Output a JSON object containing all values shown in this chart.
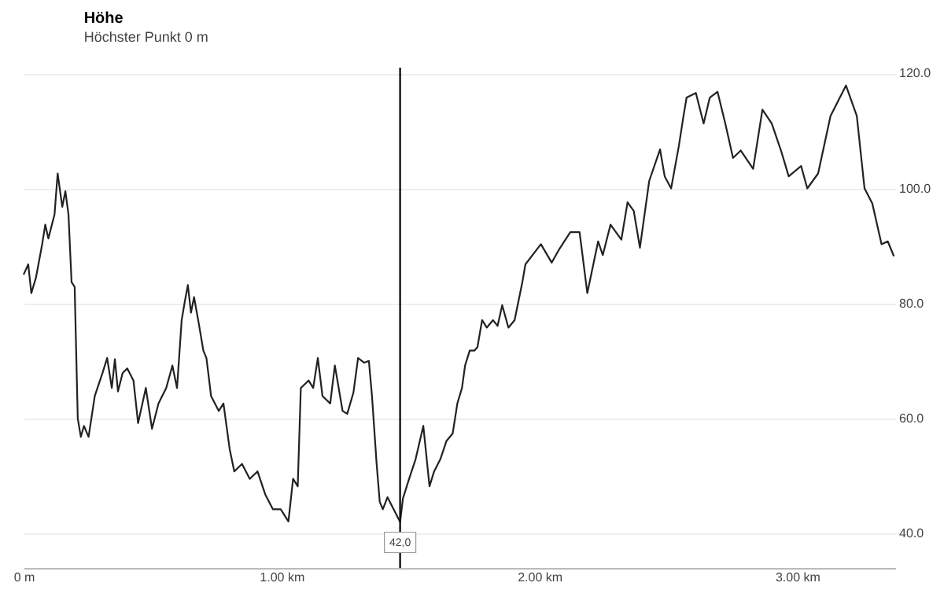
{
  "chart_data": {
    "type": "line",
    "title": "Höhe",
    "subtitle": "Höchster Punkt 0 m",
    "x": [
      0,
      0.018,
      0.03,
      0.048,
      0.072,
      0.084,
      0.096,
      0.12,
      0.132,
      0.15,
      0.162,
      0.174,
      0.186,
      0.198,
      0.21,
      0.222,
      0.234,
      0.252,
      0.276,
      0.306,
      0.324,
      0.342,
      0.354,
      0.366,
      0.384,
      0.402,
      0.426,
      0.444,
      0.474,
      0.498,
      0.523,
      0.553,
      0.577,
      0.595,
      0.613,
      0.625,
      0.637,
      0.649,
      0.661,
      0.679,
      0.697,
      0.709,
      0.727,
      0.757,
      0.775,
      0.799,
      0.817,
      0.847,
      0.877,
      0.907,
      0.937,
      0.967,
      0.997,
      1.027,
      1.045,
      1.063,
      1.075,
      1.105,
      1.123,
      1.141,
      1.159,
      1.189,
      1.207,
      1.237,
      1.255,
      1.279,
      1.297,
      1.321,
      1.339,
      1.351,
      1.369,
      1.381,
      1.393,
      1.411,
      1.46,
      1.471,
      1.495,
      1.52,
      1.55,
      1.574,
      1.592,
      1.616,
      1.64,
      1.664,
      1.682,
      1.7,
      1.712,
      1.73,
      1.748,
      1.76,
      1.778,
      1.796,
      1.82,
      1.838,
      1.856,
      1.88,
      1.904,
      1.934,
      1.946,
      2.006,
      2.048,
      2.078,
      2.12,
      2.156,
      2.186,
      2.228,
      2.246,
      2.276,
      2.318,
      2.342,
      2.366,
      2.39,
      2.426,
      2.468,
      2.486,
      2.511,
      2.541,
      2.559,
      2.571,
      2.607,
      2.637,
      2.661,
      2.691,
      2.721,
      2.751,
      2.781,
      2.829,
      2.865,
      2.901,
      2.937,
      2.967,
      3.015,
      3.039,
      3.081,
      3.129,
      3.189,
      3.231,
      3.261,
      3.291,
      3.327,
      3.351,
      3.375
    ],
    "series": [
      {
        "color": "#222222",
        "values": [
          85.0,
          86.8,
          81.8,
          84.5,
          90.3,
          93.7,
          91.3,
          95.5,
          102.6,
          96.8,
          99.5,
          95.5,
          83.7,
          82.9,
          60.0,
          56.8,
          58.7,
          56.8,
          63.9,
          67.9,
          70.5,
          65.3,
          70.3,
          64.7,
          67.9,
          68.7,
          66.6,
          59.2,
          65.3,
          58.2,
          62.6,
          65.3,
          69.2,
          65.3,
          77.1,
          80.3,
          83.2,
          78.4,
          81.1,
          76.6,
          71.8,
          70.5,
          63.9,
          61.3,
          62.6,
          54.7,
          50.8,
          52.1,
          49.5,
          50.8,
          46.8,
          44.2,
          44.2,
          42.1,
          49.5,
          48.2,
          65.3,
          66.6,
          65.3,
          70.5,
          63.9,
          62.6,
          69.2,
          61.3,
          60.8,
          64.5,
          70.5,
          69.7,
          70.0,
          63.9,
          52.1,
          45.5,
          44.2,
          46.3,
          42.0,
          46.1,
          49.5,
          52.9,
          58.7,
          48.2,
          50.8,
          52.9,
          56.1,
          57.4,
          62.6,
          65.3,
          69.2,
          71.8,
          71.8,
          72.4,
          77.1,
          75.8,
          77.1,
          76.1,
          79.7,
          75.8,
          77.1,
          83.7,
          86.8,
          90.3,
          87.1,
          89.5,
          92.4,
          92.4,
          81.8,
          90.8,
          88.4,
          93.7,
          91.1,
          97.6,
          96.1,
          89.7,
          101.3,
          106.8,
          102.1,
          100.0,
          107.4,
          112.6,
          115.8,
          116.6,
          111.3,
          115.8,
          116.8,
          111.3,
          105.3,
          106.6,
          103.4,
          113.7,
          111.3,
          106.6,
          102.1,
          103.9,
          100.0,
          102.6,
          112.6,
          117.9,
          112.6,
          100.0,
          97.4,
          90.3,
          90.8,
          88.2
        ]
      }
    ],
    "xlim": [
      0,
      3.38
    ],
    "xticks": [
      {
        "value": 0,
        "label": "0 m"
      },
      {
        "value": 1,
        "label": "1.00 km"
      },
      {
        "value": 2,
        "label": "2.00 km"
      },
      {
        "value": 3,
        "label": "3.00 km"
      }
    ],
    "ylim": [
      34,
      121
    ],
    "yticks": [
      {
        "value": 40,
        "label": "40.0"
      },
      {
        "value": 60,
        "label": "60.0"
      },
      {
        "value": 80,
        "label": "80.0"
      },
      {
        "value": 100,
        "label": "100.0"
      },
      {
        "value": 120,
        "label": "120.0"
      }
    ],
    "ref_lines": [
      {
        "axis": "x",
        "value": 1.46,
        "color": "#111111"
      }
    ],
    "annotations": [
      {
        "text": "42,0",
        "x": 1.46,
        "y": 42.0
      }
    ],
    "grid": "y",
    "marker": "none",
    "line_style": "solid"
  }
}
